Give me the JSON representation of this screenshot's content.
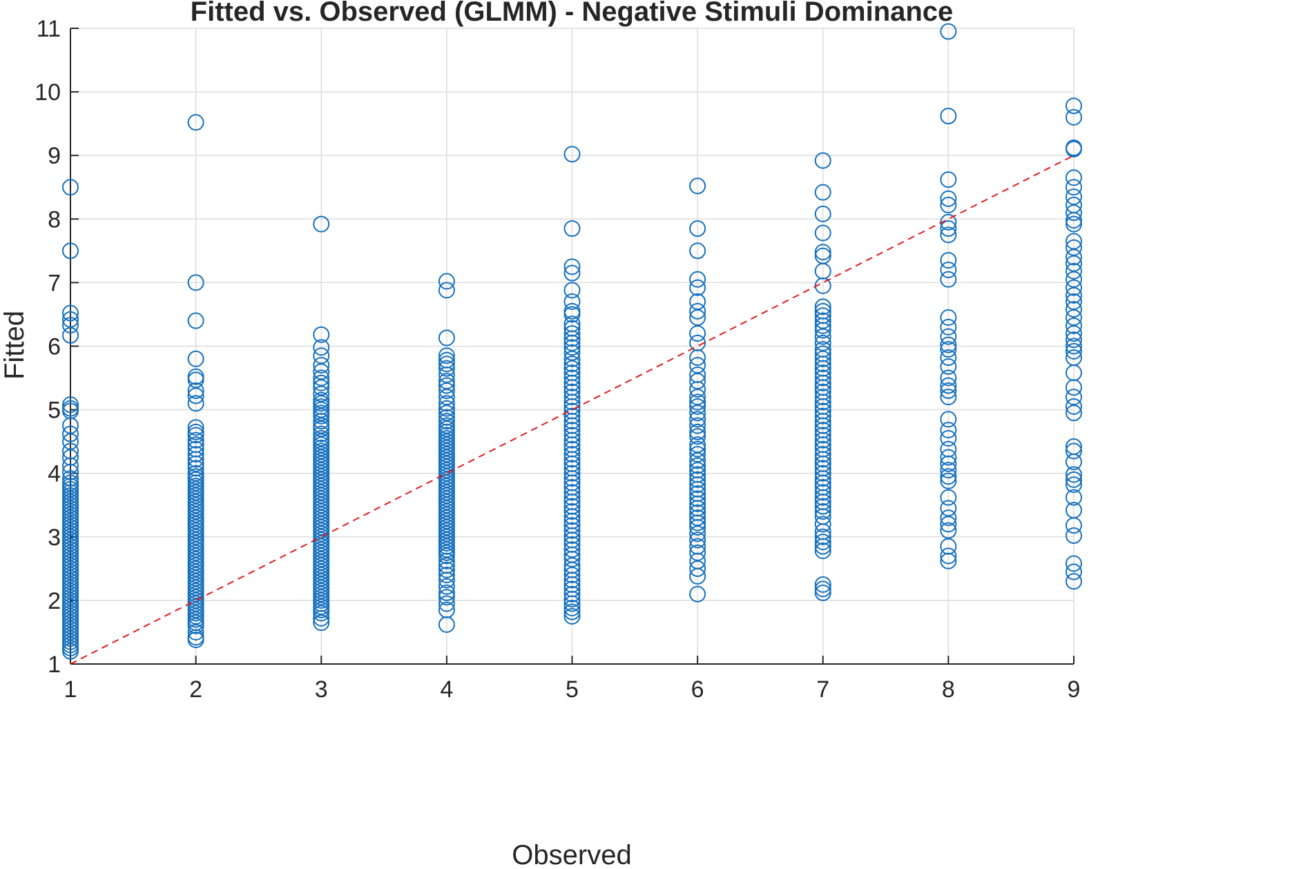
{
  "colors": {
    "marker": "#1570be",
    "reference_line": "#e31a1c",
    "grid": "#dcdcdc",
    "axis": "#262626"
  },
  "chart_data": {
    "type": "scatter",
    "title": "Fitted vs. Observed (GLMM) - Negative Stimuli Dominance",
    "xlabel": "Observed",
    "ylabel": "Fitted",
    "xlim": [
      1,
      9
    ],
    "ylim": [
      1,
      11
    ],
    "xticks": [
      "1",
      "2",
      "3",
      "4",
      "5",
      "6",
      "7",
      "8",
      "9"
    ],
    "yticks": [
      "1",
      "2",
      "3",
      "4",
      "5",
      "6",
      "7",
      "8",
      "9",
      "10",
      "11"
    ],
    "grid": true,
    "marker": "open-circle",
    "reference_line": {
      "style": "dashed",
      "x": [
        1,
        9
      ],
      "y": [
        1,
        9
      ]
    },
    "series": [
      {
        "points_by_observed": [
          {
            "x": 1,
            "y": [
              8.5,
              7.5,
              6.52,
              6.42,
              6.33,
              6.17,
              5.08,
              5.02,
              4.98,
              4.75,
              4.62,
              4.5,
              4.35,
              4.25,
              4.12,
              4.02,
              3.92,
              3.85,
              3.8,
              3.75,
              3.7,
              3.65,
              3.6,
              3.55,
              3.5,
              3.45,
              3.4,
              3.35,
              3.3,
              3.25,
              3.2,
              3.15,
              3.1,
              3.05,
              3.0,
              2.95,
              2.9,
              2.85,
              2.8,
              2.75,
              2.7,
              2.65,
              2.6,
              2.55,
              2.5,
              2.45,
              2.4,
              2.35,
              2.3,
              2.25,
              2.2,
              2.15,
              2.1,
              2.05,
              2.0,
              1.95,
              1.9,
              1.85,
              1.8,
              1.75,
              1.7,
              1.65,
              1.6,
              1.55,
              1.5,
              1.45,
              1.4,
              1.35,
              1.3,
              1.25,
              1.2
            ]
          },
          {
            "x": 2,
            "y": [
              9.52,
              7.0,
              6.4,
              5.8,
              5.52,
              5.47,
              5.3,
              5.22,
              5.1,
              4.72,
              4.65,
              4.6,
              4.52,
              4.45,
              4.38,
              4.3,
              4.22,
              4.15,
              4.08,
              4.0,
              3.95,
              3.9,
              3.85,
              3.8,
              3.75,
              3.7,
              3.65,
              3.6,
              3.55,
              3.5,
              3.45,
              3.4,
              3.35,
              3.3,
              3.25,
              3.2,
              3.15,
              3.1,
              3.05,
              3.0,
              2.95,
              2.9,
              2.85,
              2.8,
              2.75,
              2.7,
              2.65,
              2.6,
              2.55,
              2.5,
              2.45,
              2.4,
              2.35,
              2.3,
              2.25,
              2.2,
              2.15,
              2.1,
              2.05,
              2.0,
              1.95,
              1.9,
              1.85,
              1.8,
              1.75,
              1.7,
              1.65,
              1.6,
              1.5,
              1.42,
              1.38
            ]
          },
          {
            "x": 3,
            "y": [
              7.92,
              6.18,
              5.98,
              5.85,
              5.7,
              5.6,
              5.5,
              5.42,
              5.35,
              5.25,
              5.15,
              5.1,
              5.05,
              5.0,
              4.95,
              4.9,
              4.82,
              4.75,
              4.7,
              4.62,
              4.55,
              4.5,
              4.45,
              4.4,
              4.35,
              4.3,
              4.25,
              4.2,
              4.15,
              4.1,
              4.05,
              4.0,
              3.95,
              3.9,
              3.85,
              3.8,
              3.75,
              3.7,
              3.65,
              3.6,
              3.55,
              3.5,
              3.45,
              3.4,
              3.35,
              3.3,
              3.25,
              3.2,
              3.15,
              3.1,
              3.05,
              3.0,
              2.95,
              2.9,
              2.85,
              2.8,
              2.75,
              2.7,
              2.65,
              2.6,
              2.55,
              2.5,
              2.45,
              2.4,
              2.35,
              2.3,
              2.25,
              2.2,
              2.15,
              2.1,
              2.05,
              2.0,
              1.95,
              1.9,
              1.85,
              1.8,
              1.72,
              1.65
            ]
          },
          {
            "x": 4,
            "y": [
              7.02,
              6.88,
              6.13,
              5.85,
              5.78,
              5.72,
              5.65,
              5.55,
              5.45,
              5.38,
              5.3,
              5.2,
              5.1,
              5.02,
              4.95,
              4.88,
              4.82,
              4.75,
              4.7,
              4.65,
              4.6,
              4.55,
              4.5,
              4.45,
              4.4,
              4.35,
              4.3,
              4.25,
              4.2,
              4.15,
              4.1,
              4.05,
              4.0,
              3.95,
              3.9,
              3.85,
              3.8,
              3.75,
              3.7,
              3.65,
              3.6,
              3.55,
              3.5,
              3.45,
              3.4,
              3.35,
              3.3,
              3.25,
              3.2,
              3.15,
              3.1,
              3.05,
              3.0,
              2.95,
              2.9,
              2.85,
              2.8,
              2.75,
              2.7,
              2.62,
              2.55,
              2.48,
              2.4,
              2.32,
              2.22,
              2.12,
              2.05,
              1.95,
              1.85,
              1.62
            ]
          },
          {
            "x": 5,
            "y": [
              9.02,
              7.85,
              7.25,
              7.15,
              6.88,
              6.7,
              6.55,
              6.5,
              6.35,
              6.28,
              6.2,
              6.12,
              6.05,
              5.98,
              5.9,
              5.8,
              5.72,
              5.65,
              5.58,
              5.5,
              5.42,
              5.35,
              5.28,
              5.2,
              5.12,
              5.05,
              4.98,
              4.9,
              4.82,
              4.75,
              4.68,
              4.6,
              4.52,
              4.45,
              4.38,
              4.3,
              4.22,
              4.15,
              4.08,
              4.0,
              3.92,
              3.85,
              3.78,
              3.7,
              3.62,
              3.55,
              3.48,
              3.4,
              3.32,
              3.25,
              3.18,
              3.1,
              3.02,
              2.95,
              2.88,
              2.8,
              2.72,
              2.65,
              2.55,
              2.48,
              2.4,
              2.32,
              2.25,
              2.18,
              2.1,
              2.02,
              1.95,
              1.88,
              1.82,
              1.75
            ]
          },
          {
            "x": 6,
            "y": [
              8.52,
              7.85,
              7.5,
              7.05,
              6.92,
              6.7,
              6.55,
              6.45,
              6.2,
              6.05,
              5.82,
              5.7,
              5.55,
              5.45,
              5.32,
              5.2,
              5.12,
              5.05,
              4.95,
              4.85,
              4.75,
              4.65,
              4.58,
              4.45,
              4.38,
              4.3,
              4.2,
              4.12,
              4.05,
              3.98,
              3.9,
              3.82,
              3.75,
              3.68,
              3.6,
              3.52,
              3.45,
              3.38,
              3.3,
              3.22,
              3.15,
              3.05,
              2.95,
              2.85,
              2.75,
              2.62,
              2.5,
              2.38,
              2.1
            ]
          },
          {
            "x": 7,
            "y": [
              8.92,
              8.42,
              8.08,
              7.78,
              7.48,
              7.42,
              7.18,
              6.95,
              6.62,
              6.55,
              6.48,
              6.4,
              6.32,
              6.25,
              6.15,
              6.05,
              5.95,
              5.88,
              5.8,
              5.72,
              5.65,
              5.58,
              5.5,
              5.42,
              5.35,
              5.28,
              5.2,
              5.12,
              5.05,
              4.98,
              4.9,
              4.82,
              4.75,
              4.68,
              4.6,
              4.52,
              4.45,
              4.38,
              4.3,
              4.22,
              4.15,
              4.08,
              4.0,
              3.92,
              3.85,
              3.78,
              3.7,
              3.62,
              3.55,
              3.48,
              3.4,
              3.32,
              3.2,
              3.08,
              3.0,
              2.92,
              2.85,
              2.78,
              2.25,
              2.18,
              2.12
            ]
          },
          {
            "x": 8,
            "y": [
              10.95,
              9.62,
              8.62,
              8.32,
              8.22,
              7.95,
              7.85,
              7.75,
              7.35,
              7.2,
              7.05,
              6.45,
              6.3,
              6.15,
              6.02,
              5.95,
              5.82,
              5.68,
              5.5,
              5.38,
              5.3,
              5.2,
              4.85,
              4.68,
              4.55,
              4.38,
              4.25,
              4.15,
              4.05,
              3.95,
              3.88,
              3.62,
              3.45,
              3.3,
              3.2,
              3.1,
              2.85,
              2.7,
              2.62
            ]
          },
          {
            "x": 9,
            "y": [
              9.78,
              9.6,
              9.12,
              9.1,
              8.65,
              8.5,
              8.35,
              8.22,
              8.1,
              7.98,
              7.92,
              7.65,
              7.55,
              7.4,
              7.3,
              7.18,
              7.05,
              6.92,
              6.8,
              6.7,
              6.58,
              6.45,
              6.32,
              6.2,
              6.1,
              6.0,
              5.92,
              5.82,
              5.58,
              5.35,
              5.2,
              5.05,
              4.95,
              4.42,
              4.35,
              4.18,
              3.98,
              3.9,
              3.82,
              3.62,
              3.42,
              3.18,
              3.02,
              2.58,
              2.45,
              2.3
            ]
          }
        ]
      }
    ]
  }
}
